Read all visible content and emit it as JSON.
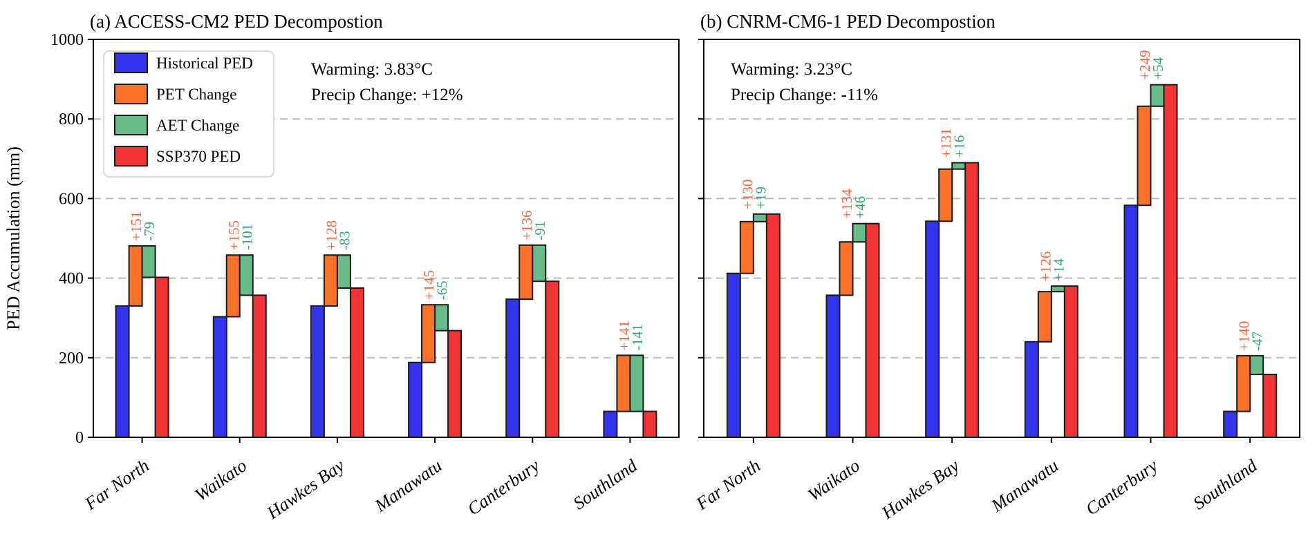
{
  "figure": {
    "ylabel": "PED Accumulation (mm)",
    "yticks": [
      0,
      200,
      400,
      600,
      800,
      1000
    ],
    "ylim": [
      0,
      1000
    ],
    "legend": [
      {
        "label": "Historical PED",
        "color_key": "historical"
      },
      {
        "label": "PET Change",
        "color_key": "pet"
      },
      {
        "label": "AET Change",
        "color_key": "aet"
      },
      {
        "label": "SSP370 PED",
        "color_key": "ssp370"
      }
    ],
    "colors": {
      "historical": "#3434ef",
      "pet": "#fb7127",
      "aet": "#67bc8a",
      "ssp370": "#f23434",
      "pet_label_text": "#f4643e",
      "aet_label_text": "#2fa873",
      "bar_edge": "#1a1a1a",
      "grid": "#bbbbbb",
      "axis": "#000000",
      "legend_border": "#d9d9d9"
    }
  },
  "chart_data": [
    {
      "type": "bar",
      "panel": "a",
      "title": "(a) ACCESS-CM2 PED Decompostion",
      "annotation_lines": [
        "Warming: 3.83°C",
        "Precip Change: +12%"
      ],
      "categories": [
        "Far North",
        "Waikato",
        "Hawkes Bay",
        "Manawatu",
        "Canterbury",
        "Southland"
      ],
      "series": [
        {
          "name": "Historical PED",
          "values": [
            330,
            303,
            330,
            188,
            347,
            65
          ]
        },
        {
          "name": "PET Change",
          "values": [
            151,
            155,
            128,
            145,
            136,
            141
          ]
        },
        {
          "name": "AET Change",
          "values": [
            -79,
            -101,
            -83,
            -65,
            -91,
            -141
          ]
        },
        {
          "name": "SSP370 PED",
          "values": [
            402,
            357,
            375,
            268,
            392,
            65
          ]
        }
      ],
      "pet_labels": [
        "+151",
        "+155",
        "+128",
        "+145",
        "+136",
        "+141"
      ],
      "aet_labels": [
        "-79",
        "-101",
        "-83",
        "-65",
        "-91",
        "-141"
      ],
      "show_legend": true,
      "show_ytick_labels": true
    },
    {
      "type": "bar",
      "panel": "b",
      "title": "(b) CNRM-CM6-1 PED Decompostion",
      "annotation_lines": [
        "Warming: 3.23°C",
        "Precip Change: -11%"
      ],
      "categories": [
        "Far North",
        "Waikato",
        "Hawkes Bay",
        "Manawatu",
        "Canterbury",
        "Southland"
      ],
      "series": [
        {
          "name": "Historical PED",
          "values": [
            412,
            357,
            543,
            240,
            583,
            65
          ]
        },
        {
          "name": "PET Change",
          "values": [
            130,
            134,
            131,
            126,
            249,
            140
          ]
        },
        {
          "name": "AET Change",
          "values": [
            19,
            46,
            16,
            14,
            54,
            -47
          ]
        },
        {
          "name": "SSP370 PED",
          "values": [
            561,
            537,
            690,
            380,
            886,
            158
          ]
        }
      ],
      "pet_labels": [
        "+130",
        "+134",
        "+131",
        "+126",
        "+249",
        "+140"
      ],
      "aet_labels": [
        "+19",
        "+46",
        "+16",
        "+14",
        "+54",
        "-47"
      ],
      "show_legend": false,
      "show_ytick_labels": false
    }
  ]
}
